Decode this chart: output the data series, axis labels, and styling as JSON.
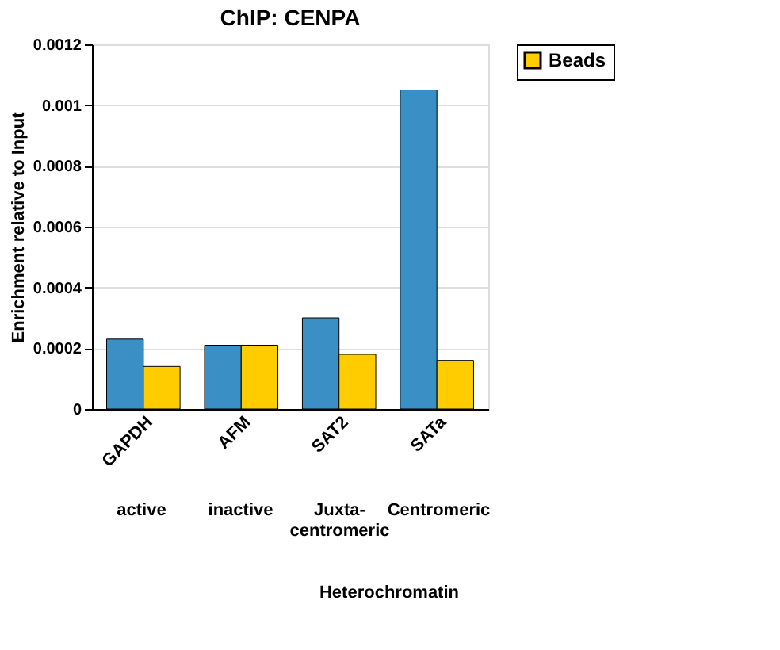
{
  "chart_data": {
    "type": "bar",
    "title": "ChIP: CENPA",
    "ylabel": "Enrichment relative to Input",
    "categories": [
      "GAPDH",
      "AFM",
      "SAT2",
      "SATa"
    ],
    "series": [
      {
        "color": "#3a8fc4",
        "values": [
          0.00023,
          0.00021,
          0.0003,
          0.00105
        ]
      },
      {
        "name": "Beads",
        "color": "#ffcc00",
        "values": [
          0.00014,
          0.00021,
          0.00018,
          0.00016
        ]
      }
    ],
    "ylim": [
      0,
      0.0012
    ],
    "yticks": [
      0,
      0.0002,
      0.0004,
      0.0006,
      0.0008,
      0.001,
      0.0012
    ],
    "grid": "y",
    "legend": "right",
    "annotations": [
      "active",
      "inactive",
      "Juxta-centromeric",
      "Centromeric",
      "Heterochromatin"
    ]
  }
}
